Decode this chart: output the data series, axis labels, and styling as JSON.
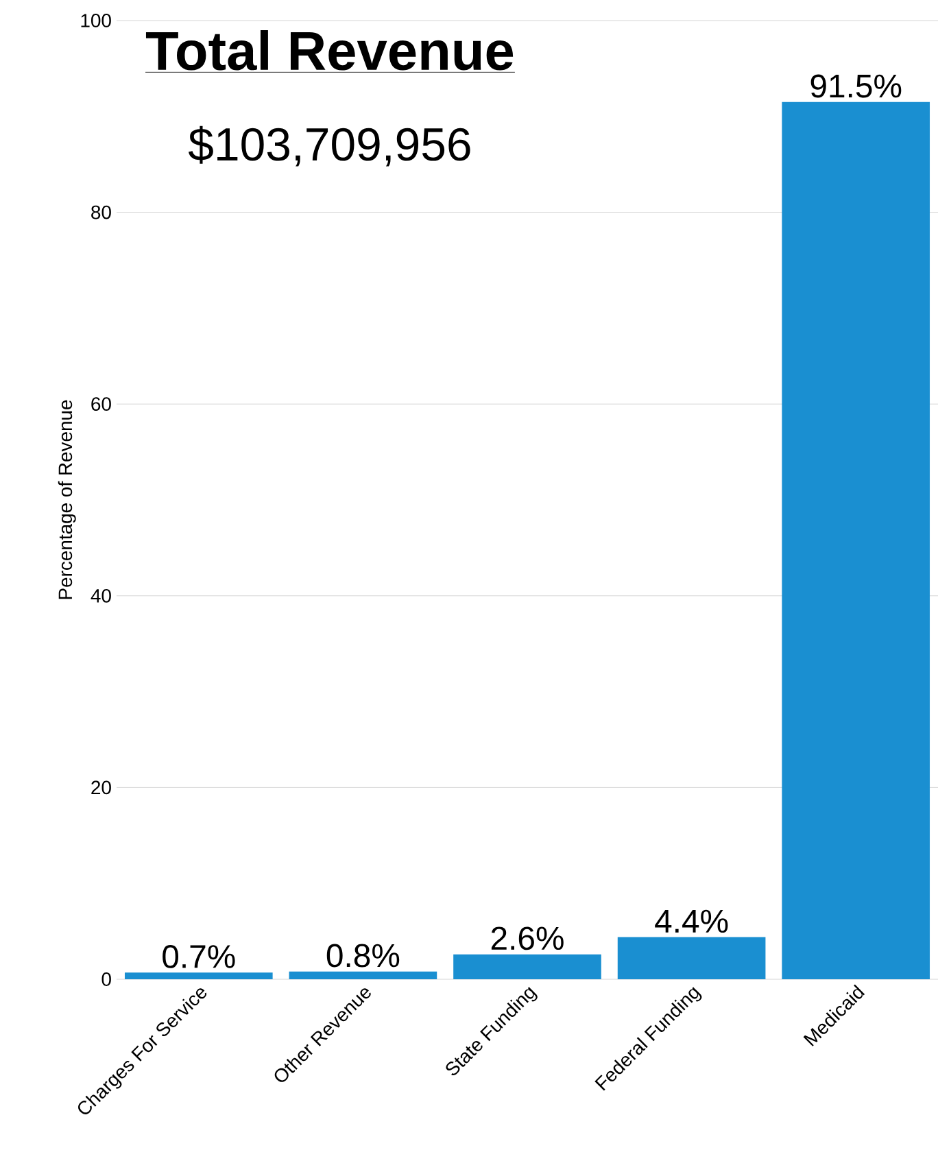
{
  "chart_data": {
    "type": "bar",
    "title": "Total Revenue",
    "subtitle": "$103,709,956",
    "ylabel": "Percentage of Revenue",
    "categories": [
      "Charges For Service",
      "Other Revenue",
      "State Funding",
      "Federal Funding",
      "Medicaid"
    ],
    "values": [
      0.7,
      0.8,
      2.6,
      4.4,
      91.5
    ],
    "value_labels": [
      "0.7%",
      "0.8%",
      "2.6%",
      "4.4%",
      "91.5%"
    ],
    "color": "#1a8fd1",
    "ylim": [
      0,
      100
    ],
    "yticks": [
      0,
      20,
      40,
      60,
      80,
      100
    ],
    "grid": "y"
  }
}
